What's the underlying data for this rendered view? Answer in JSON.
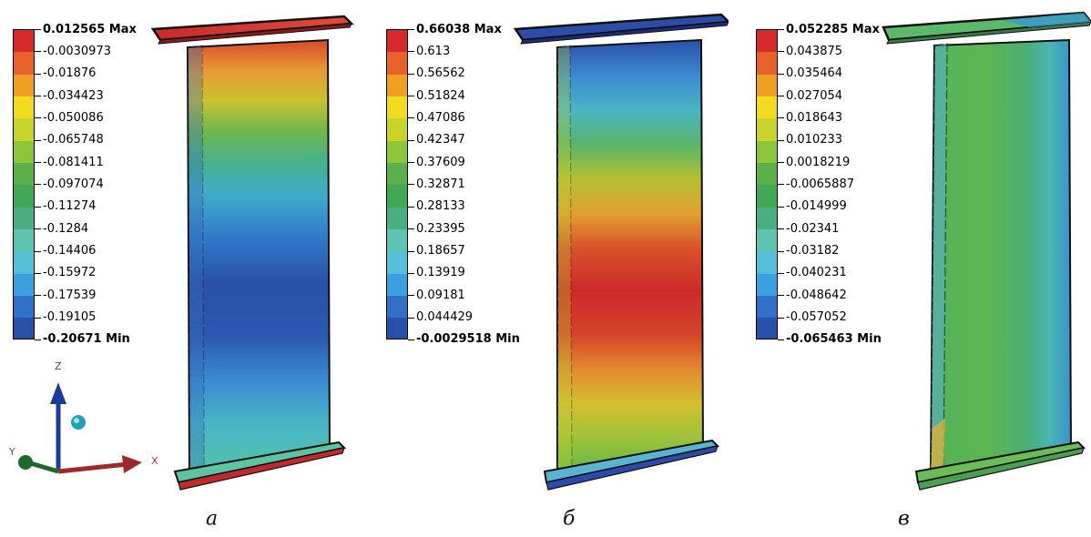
{
  "panels": [
    {
      "caption": "а",
      "legend": [
        "0.012565 Max",
        "-0.0030973",
        "-0.01876",
        "-0.034423",
        "-0.050086",
        "-0.065748",
        "-0.081411",
        "-0.097074",
        "-0.11274",
        "-0.1284",
        "-0.14406",
        "-0.15972",
        "-0.17539",
        "-0.19105",
        "-0.20671 Min"
      ]
    },
    {
      "caption": "б",
      "legend": [
        "0.66038 Max",
        "0.613",
        "0.56562",
        "0.51824",
        "0.47086",
        "0.42347",
        "0.37609",
        "0.32871",
        "0.28133",
        "0.23395",
        "0.18657",
        "0.13919",
        "0.09181",
        "0.044429",
        "-0.0029518 Min"
      ]
    },
    {
      "caption": "в",
      "legend": [
        "0.052285 Max",
        "0.043875",
        "0.035464",
        "0.027054",
        "0.018643",
        "0.010233",
        "0.0018219",
        "-0.0065887",
        "-0.014999",
        "-0.02341",
        "-0.03182",
        "-0.040231",
        "-0.048642",
        "-0.057052",
        "-0.065463 Min"
      ]
    }
  ],
  "legend_colors": [
    "#d62a2a",
    "#e8602a",
    "#f0a020",
    "#f2dc20",
    "#c9d42a",
    "#8cc43a",
    "#5cb04a",
    "#42a855",
    "#4aae80",
    "#5ec4b0",
    "#56c0da",
    "#3aa0e0",
    "#3070c8",
    "#2850a8"
  ],
  "axes": {
    "z_label": "Z",
    "y_label": "Y",
    "x_label": "X"
  }
}
